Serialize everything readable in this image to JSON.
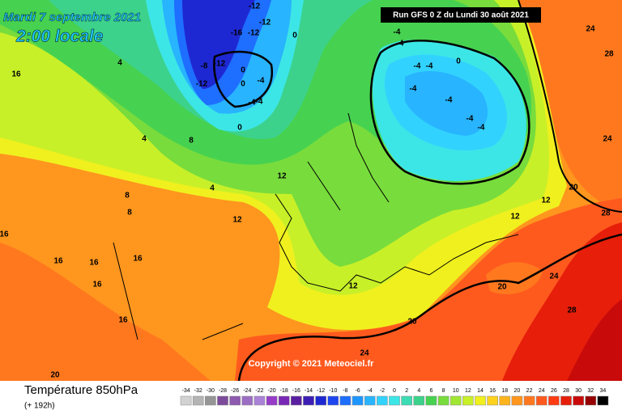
{
  "header": {
    "date": "Mardi 7 septembre 2021",
    "time": "2:00 locale",
    "run": "Run GFS 0 Z du Lundi 30 août 2021"
  },
  "copyright": "Copyright © 2021 Meteociel.fr",
  "footer": {
    "title": "Température 850hPa",
    "subtitle": "(+ 192h)"
  },
  "colorbar": {
    "ticks": [
      -34,
      -32,
      -30,
      -28,
      -26,
      -24,
      -22,
      -20,
      -18,
      -16,
      -14,
      -12,
      -10,
      -8,
      -6,
      -4,
      -2,
      0,
      2,
      4,
      6,
      8,
      10,
      12,
      14,
      16,
      18,
      20,
      22,
      24,
      26,
      28,
      30,
      32,
      34
    ],
    "colors": [
      "#d2d2d2",
      "#b4b4b4",
      "#969696",
      "#7d4b9b",
      "#8c5aaf",
      "#9b6ec3",
      "#aa82d7",
      "#963cc8",
      "#7828b4",
      "#5a1ea0",
      "#3c1eb4",
      "#1e28d2",
      "#1e46f0",
      "#1e6eff",
      "#1e96ff",
      "#28b4ff",
      "#32d2ff",
      "#3ce6e6",
      "#3cdcb4",
      "#3cd28c",
      "#46d250",
      "#78dc3c",
      "#a0e632",
      "#c8f028",
      "#f0f01e",
      "#ffd21e",
      "#ffb41e",
      "#ff961e",
      "#ff781e",
      "#ff5a1e",
      "#ff3c14",
      "#e61e0a",
      "#c80a0a",
      "#960000",
      "#000000"
    ]
  },
  "contour_labels": [
    "-12",
    "-12",
    "-16",
    "-12",
    "-8",
    "-12",
    "-12",
    "0",
    "0",
    "-4",
    "-4",
    "0",
    "-4",
    "-4",
    "-4",
    "0",
    "-4",
    "-4",
    "-4",
    "-4",
    "-4",
    "-4",
    "0",
    "4",
    "4",
    "4",
    "8",
    "8",
    "8",
    "12",
    "12",
    "12",
    "12",
    "12",
    "16",
    "16",
    "16",
    "16",
    "16",
    "16",
    "16",
    "20",
    "20",
    "20",
    "20",
    "24",
    "24",
    "24",
    "24",
    "28",
    "28",
    "28"
  ]
}
